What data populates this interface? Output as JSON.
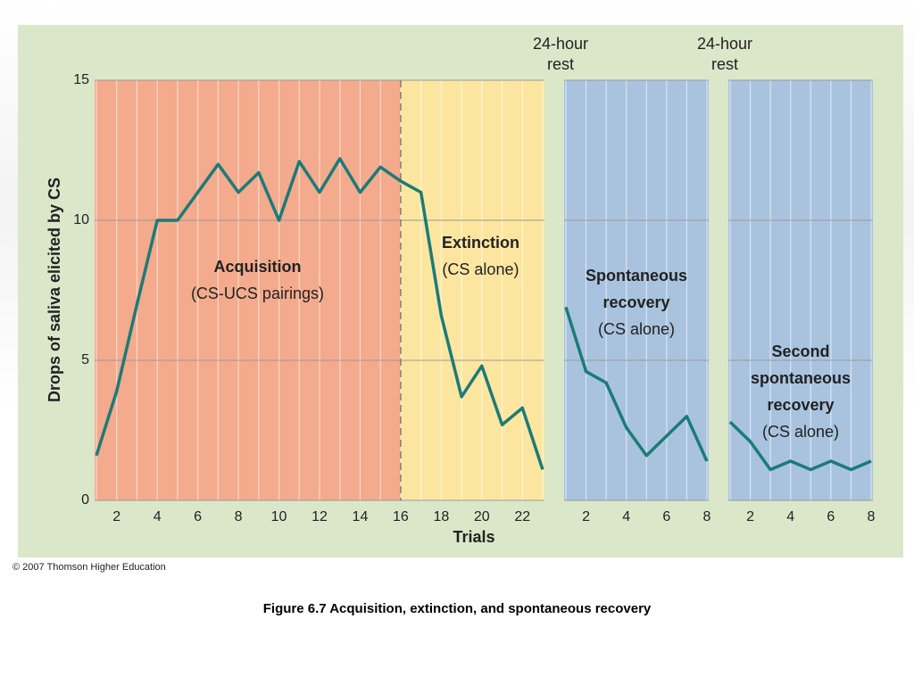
{
  "chart_data": [
    {
      "type": "line",
      "x": [
        1,
        2,
        3,
        4,
        5,
        6,
        7,
        8,
        9,
        10,
        11,
        12,
        13,
        14,
        15,
        16,
        17,
        18,
        19,
        20,
        21,
        22,
        23
      ],
      "series": [
        {
          "color": "#1b7b79",
          "values": [
            1.6,
            3.9,
            7.0,
            10.0,
            10.0,
            11.0,
            12.0,
            11.0,
            11.7,
            10.0,
            12.1,
            11.0,
            12.2,
            11.0,
            11.9,
            11.4,
            11.0,
            6.6,
            3.7,
            4.8,
            2.7,
            3.3,
            1.1
          ]
        }
      ],
      "xlim": [
        1,
        23
      ],
      "xticks": [
        2,
        4,
        6,
        8,
        10,
        12,
        14,
        16,
        18,
        20,
        22
      ],
      "ylim": [
        0,
        15
      ],
      "yticks": [
        0,
        5,
        10,
        15
      ],
      "ylabel": "Drops of saliva elicited by CS",
      "xlabel": "Trials",
      "grid": true,
      "regions": [
        {
          "xlim": [
            1,
            16
          ],
          "color": "#f4aa8c",
          "title": [
            "Acquisition"
          ],
          "note": "(CS-UCS pairings)"
        },
        {
          "xlim": [
            16,
            23
          ],
          "color": "#fce69f",
          "title": [
            "Extinction"
          ],
          "note": "(CS alone)"
        }
      ]
    },
    {
      "type": "line",
      "x": [
        1,
        2,
        3,
        4,
        5,
        6,
        7,
        8
      ],
      "series": [
        {
          "color": "#1b7b79",
          "values": [
            6.9,
            4.6,
            4.2,
            2.6,
            1.6,
            2.3,
            3.0,
            1.4
          ]
        }
      ],
      "xlim": [
        1,
        8
      ],
      "xticks": [
        2,
        4,
        6,
        8
      ],
      "grid": true,
      "rest_label": [
        "24-hour",
        "rest"
      ],
      "regions": [
        {
          "xlim": [
            1,
            8
          ],
          "color": "#a9c3df",
          "title": [
            "Spontaneous",
            "recovery"
          ],
          "note": "(CS alone)"
        }
      ]
    },
    {
      "type": "line",
      "x": [
        1,
        2,
        3,
        4,
        5,
        6,
        7,
        8
      ],
      "series": [
        {
          "color": "#1b7b79",
          "values": [
            2.8,
            2.1,
            1.1,
            1.4,
            1.1,
            1.4,
            1.1,
            1.4
          ]
        }
      ],
      "xlim": [
        1,
        8
      ],
      "xticks": [
        2,
        4,
        6,
        8
      ],
      "grid": true,
      "rest_label": [
        "24-hour",
        "rest"
      ],
      "regions": [
        {
          "xlim": [
            1,
            8
          ],
          "color": "#a9c3df",
          "title": [
            "Second",
            "spontaneous",
            "recovery"
          ],
          "note": "(CS alone)"
        }
      ]
    }
  ],
  "copyright": "© 2007 Thomson Higher Education",
  "caption": "Figure 6.7  Acquisition, extinction, and spontaneous recovery"
}
